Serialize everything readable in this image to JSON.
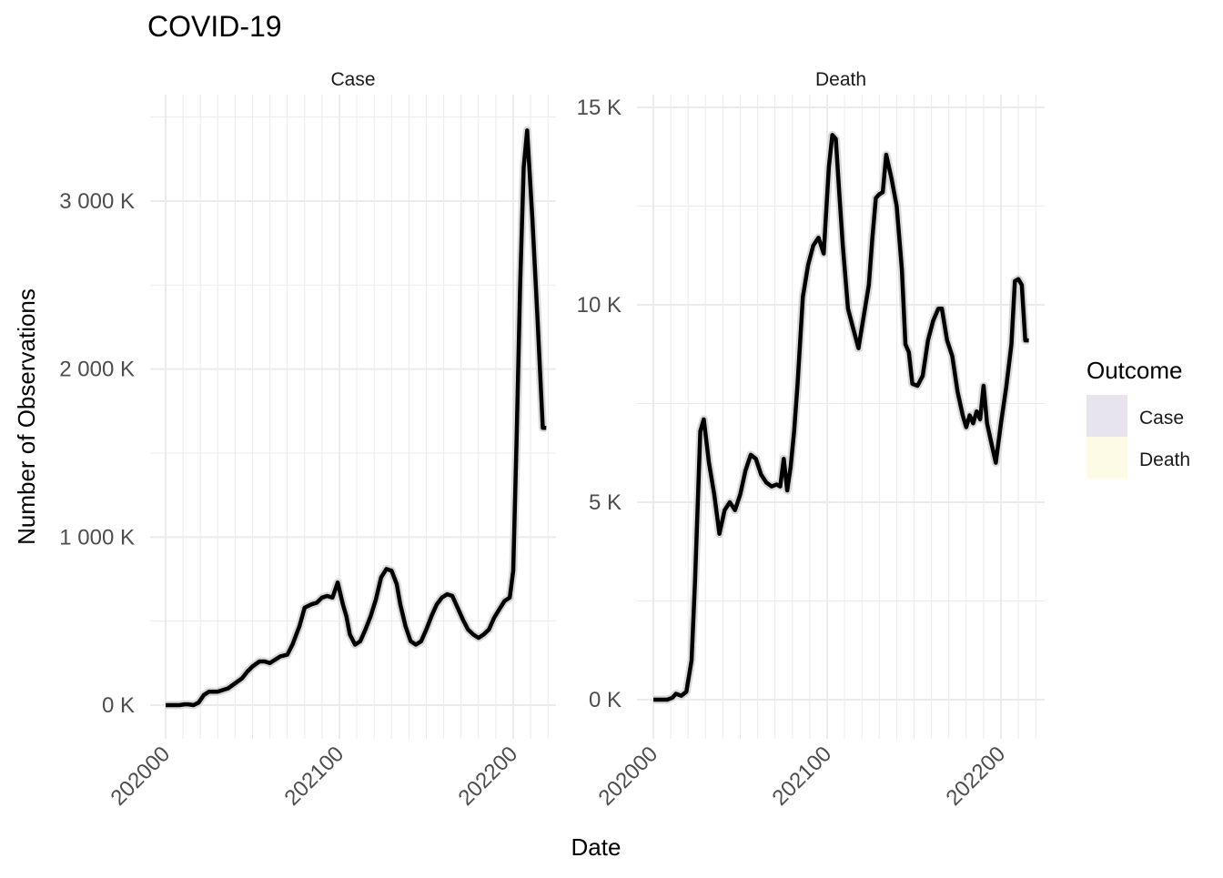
{
  "chart_data": {
    "type": "line",
    "title": "COVID-19",
    "xlabel": "Date",
    "ylabel": "Number of Observations",
    "grid": true,
    "legend": {
      "title": "Outcome",
      "position": "right",
      "entries": [
        {
          "label": "Case",
          "color": "#e8e4ee"
        },
        {
          "label": "Death",
          "color": "#fdfbe5"
        }
      ]
    },
    "x_ticks": [
      "202000",
      "202100",
      "202200"
    ],
    "panels": [
      {
        "strip": "Case",
        "ylim": [
          -150000,
          3550000
        ],
        "y_ticks": [
          0,
          1000000,
          2000000,
          3000000
        ],
        "y_tick_labels": [
          "0 K",
          "1 000 K",
          "2 000 K",
          "3 000 K"
        ],
        "series": [
          {
            "x": [
              202000,
              202004,
              202008,
              202011,
              202013,
              202016,
              202019,
              202022,
              202025,
              202027,
              202030,
              202033,
              202036,
              202040,
              202044,
              202047,
              202050,
              202054,
              202057,
              202060,
              202063,
              202066,
              202070,
              202073,
              202077,
              202080,
              202084,
              202087,
              202090,
              202093,
              202096,
              202099,
              202102,
              202104,
              202106,
              202109,
              202112,
              202115,
              202118,
              202121,
              202124,
              202127,
              202130,
              202133,
              202135,
              202138,
              202141,
              202144,
              202147,
              202150,
              202153,
              202156,
              202159,
              202162,
              202165,
              202168,
              202171,
              202174,
              202177,
              202180,
              202183,
              202186,
              202189,
              202192,
              202195,
              202198,
              202200,
              202202,
              202204,
              202206,
              202208,
              202211,
              202214,
              202217,
              202219
            ],
            "y": [
              0,
              0,
              0,
              5000,
              5000,
              0,
              15000,
              60000,
              80000,
              80000,
              80000,
              90000,
              100000,
              130000,
              160000,
              200000,
              230000,
              260000,
              260000,
              250000,
              270000,
              290000,
              300000,
              360000,
              470000,
              580000,
              600000,
              610000,
              640000,
              650000,
              640000,
              730000,
              600000,
              530000,
              420000,
              360000,
              380000,
              450000,
              530000,
              630000,
              760000,
              810000,
              800000,
              720000,
              600000,
              470000,
              380000,
              360000,
              380000,
              450000,
              530000,
              600000,
              640000,
              660000,
              650000,
              580000,
              510000,
              450000,
              420000,
              400000,
              420000,
              450000,
              520000,
              570000,
              620000,
              640000,
              800000,
              1600000,
              2500000,
              3200000,
              3420000,
              2900000,
              2300000,
              1650000,
              1650000
            ]
          }
        ]
      },
      {
        "strip": "Death",
        "ylim": [
          -800,
          15200
        ],
        "y_ticks": [
          0,
          5000,
          10000,
          15000
        ],
        "y_tick_labels": [
          "0 K",
          "5 K",
          "10 K",
          "15 K"
        ],
        "series": [
          {
            "x": [
              202000,
              202004,
              202008,
              202011,
              202013,
              202016,
              202019,
              202022,
              202024,
              202027,
              202029,
              202032,
              202035,
              202038,
              202041,
              202044,
              202047,
              202050,
              202053,
              202056,
              202059,
              202062,
              202065,
              202068,
              202071,
              202073,
              202075,
              202077,
              202079,
              202081,
              202083,
              202086,
              202089,
              202092,
              202095,
              202098,
              202101,
              202103,
              202105,
              202107,
              202109,
              202112,
              202115,
              202118,
              202121,
              202124,
              202126,
              202128,
              202130,
              202132,
              202134,
              202137,
              202140,
              202143,
              202145,
              202147,
              202149,
              202152,
              202155,
              202158,
              202161,
              202164,
              202166,
              202169,
              202172,
              202175,
              202178,
              202180,
              202182,
              202184,
              202186,
              202188,
              202190,
              202192,
              202194,
              202197,
              202200,
              202203,
              202206,
              202208,
              202210,
              202212,
              202214,
              202216
            ],
            "y": [
              0,
              0,
              0,
              50,
              150,
              100,
              200,
              1000,
              3000,
              6800,
              7100,
              6000,
              5200,
              4200,
              4800,
              5000,
              4800,
              5200,
              5800,
              6200,
              6100,
              5700,
              5500,
              5400,
              5450,
              5400,
              6100,
              5300,
              5900,
              6800,
              8000,
              10200,
              11000,
              11500,
              11700,
              11300,
              13500,
              14300,
              14200,
              12800,
              11500,
              9900,
              9400,
              8900,
              9700,
              10500,
              11700,
              12700,
              12800,
              12850,
              13800,
              13200,
              12500,
              10900,
              9000,
              8800,
              8000,
              7950,
              8200,
              9100,
              9600,
              9900,
              9900,
              9100,
              8700,
              7800,
              7200,
              6900,
              7200,
              7000,
              7300,
              7100,
              7950,
              7000,
              6600,
              6000,
              7000,
              7900,
              9000,
              10600,
              10650,
              10500,
              9100,
              9100
            ]
          }
        ]
      }
    ]
  }
}
